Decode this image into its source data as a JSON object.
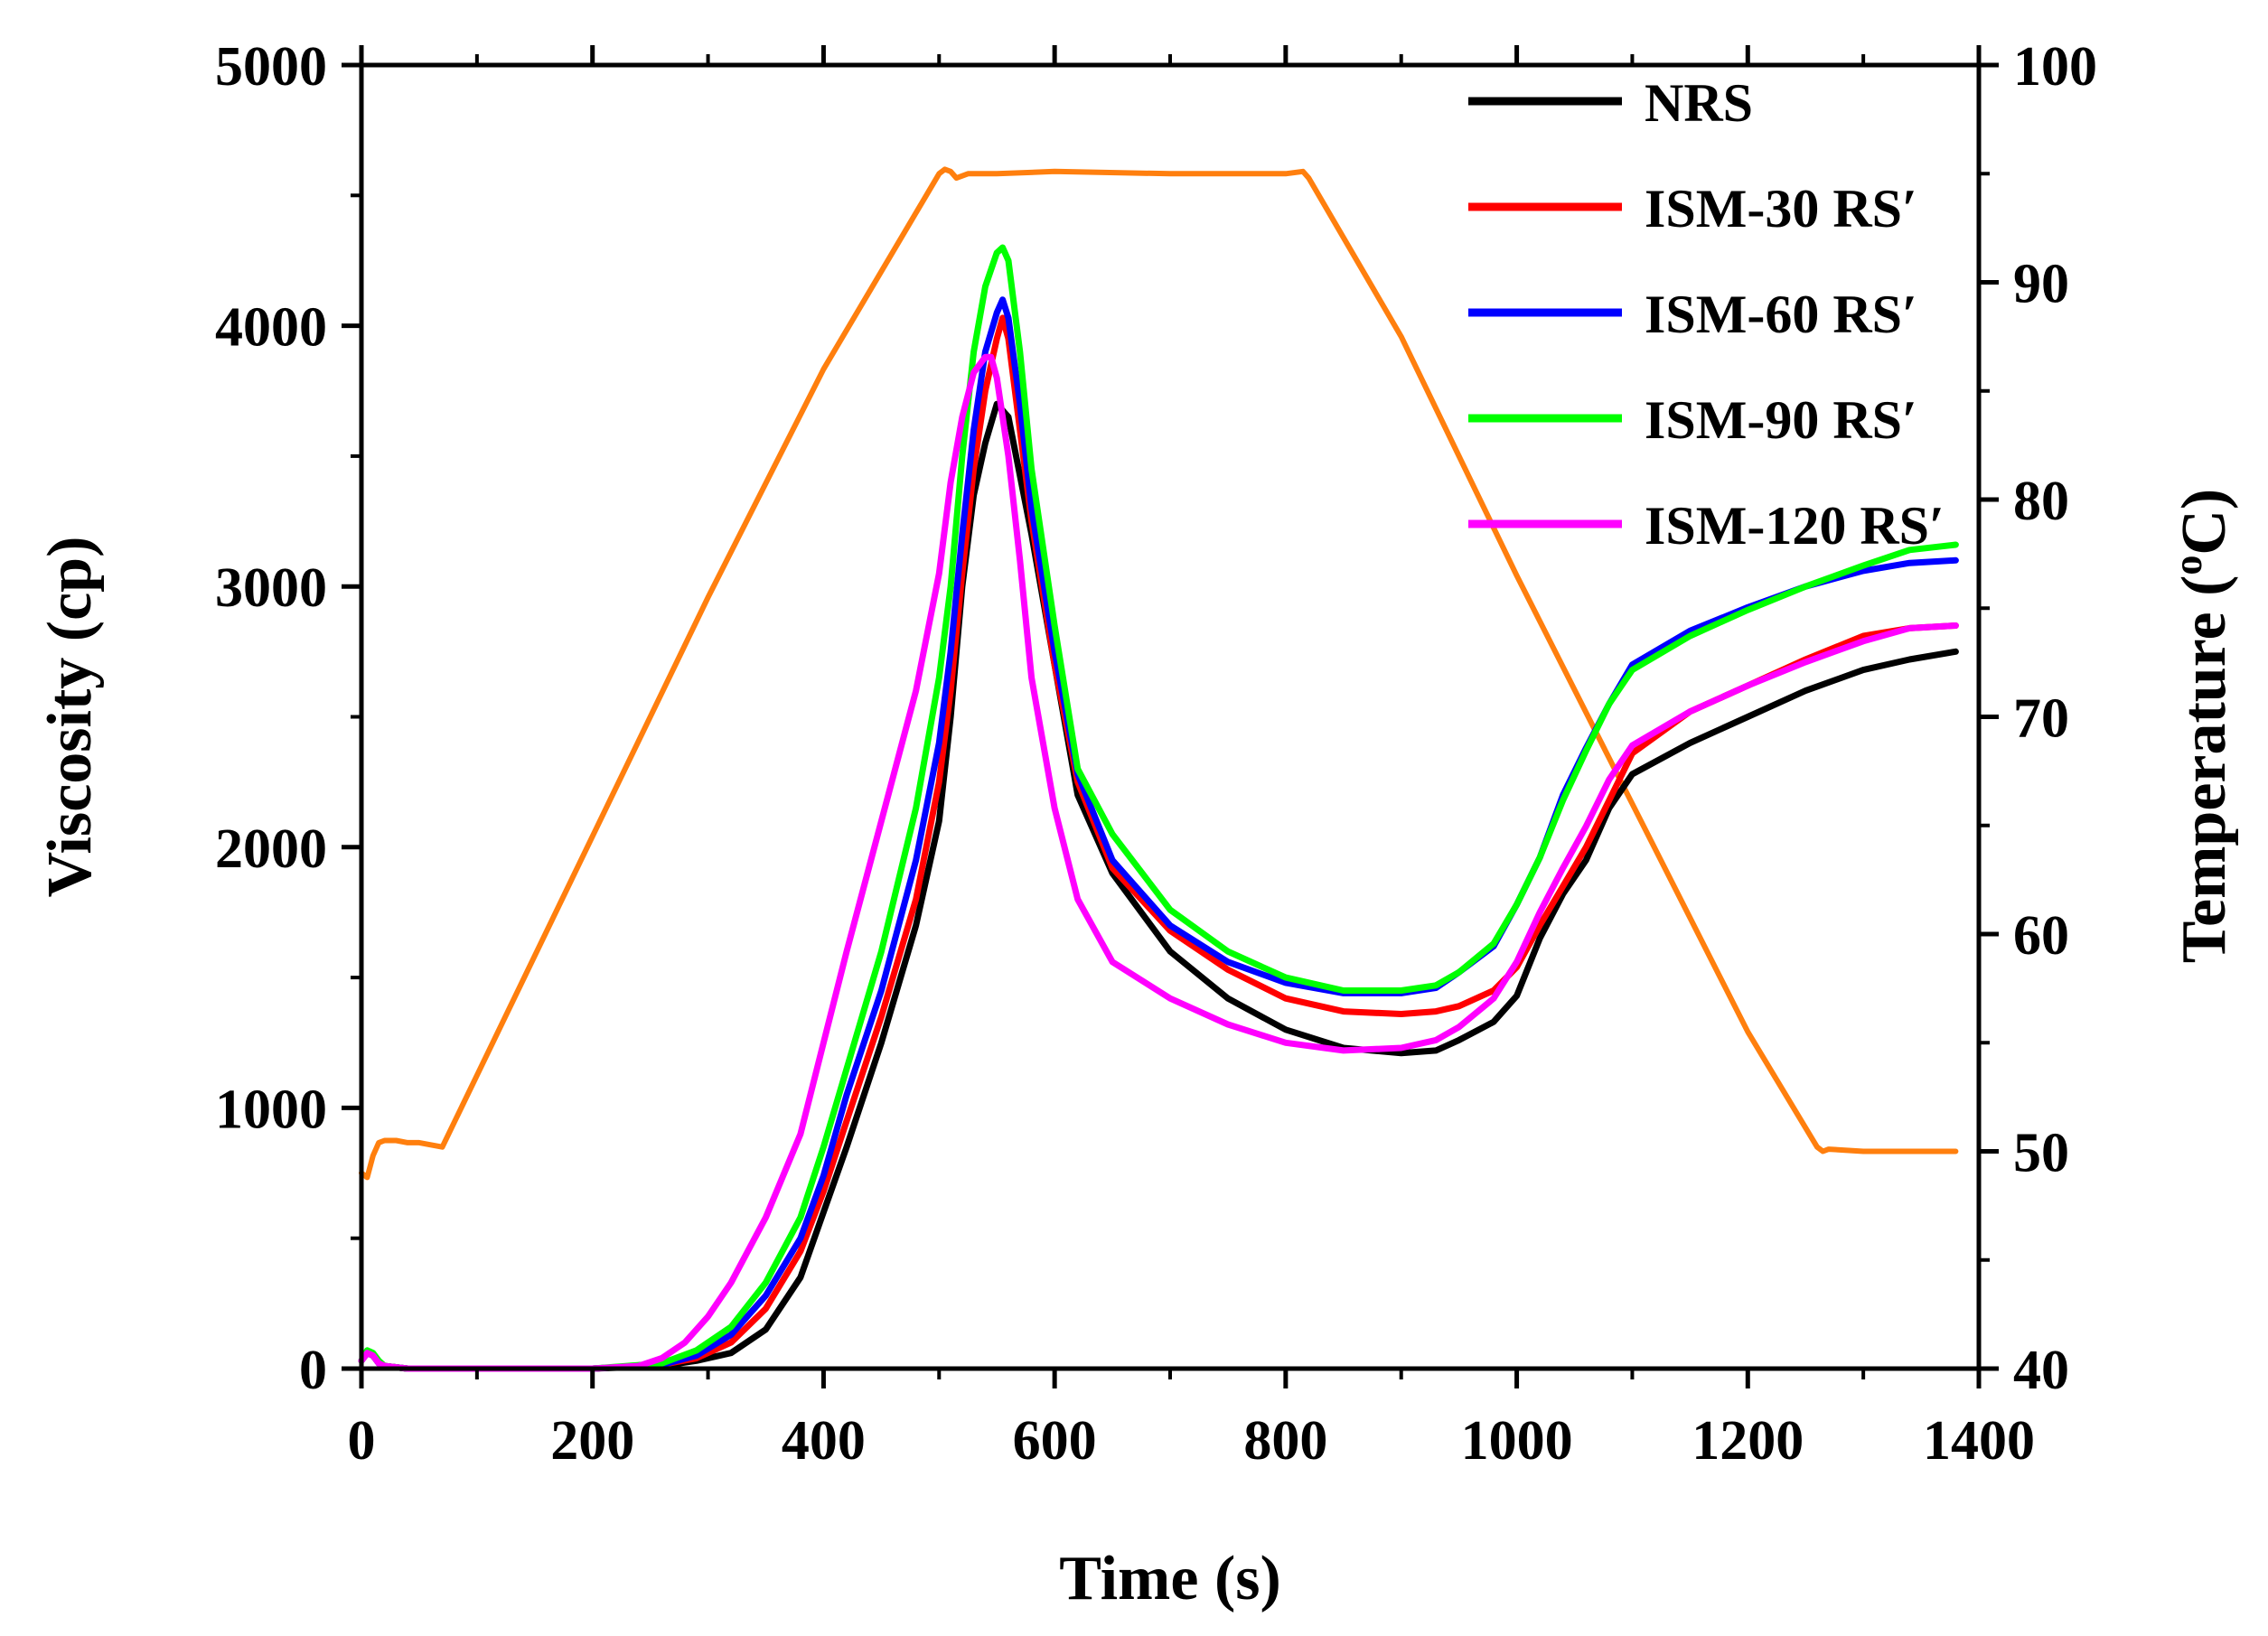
{
  "chart_data": {
    "type": "line",
    "xlabel": "Time (s)",
    "ylabel": "Viscosity (cp)",
    "y2label_main": "Temperature (",
    "y2label_sup": "o",
    "y2label_end": "C)",
    "xlim": [
      0,
      1400
    ],
    "ylim": [
      0,
      5000
    ],
    "y2lim": [
      40,
      100
    ],
    "xticks": [
      "0",
      "200",
      "400",
      "600",
      "800",
      "1000",
      "1200",
      "1400"
    ],
    "yticks": [
      "0",
      "1000",
      "2000",
      "3000",
      "4000",
      "5000"
    ],
    "y2ticks": [
      "40",
      "50",
      "60",
      "70",
      "80",
      "90",
      "100"
    ],
    "legend_position": "top-right",
    "series": [
      {
        "name": "NRS",
        "color": "#000000",
        "x": [
          0,
          5,
          10,
          15,
          20,
          40,
          100,
          200,
          260,
          290,
          320,
          350,
          380,
          400,
          420,
          450,
          480,
          500,
          510,
          520,
          530,
          540,
          550,
          560,
          580,
          600,
          620,
          650,
          700,
          750,
          800,
          850,
          900,
          930,
          950,
          980,
          1000,
          1020,
          1040,
          1060,
          1080,
          1100,
          1150,
          1200,
          1250,
          1300,
          1340,
          1380
        ],
        "y": [
          30,
          60,
          50,
          20,
          10,
          0,
          0,
          0,
          10,
          30,
          60,
          150,
          350,
          600,
          850,
          1250,
          1700,
          2100,
          2500,
          3000,
          3350,
          3550,
          3700,
          3650,
          3200,
          2700,
          2200,
          1900,
          1600,
          1420,
          1300,
          1230,
          1210,
          1220,
          1260,
          1330,
          1430,
          1650,
          1820,
          1950,
          2150,
          2280,
          2400,
          2500,
          2600,
          2680,
          2720,
          2750
        ]
      },
      {
        "name": "ISM-30 RS′",
        "color": "#ff0000",
        "x": [
          0,
          5,
          10,
          15,
          20,
          40,
          100,
          200,
          260,
          290,
          320,
          350,
          380,
          400,
          420,
          450,
          480,
          500,
          510,
          520,
          530,
          540,
          550,
          555,
          560,
          570,
          580,
          600,
          620,
          650,
          700,
          750,
          800,
          850,
          900,
          930,
          950,
          980,
          1000,
          1020,
          1040,
          1060,
          1080,
          1100,
          1150,
          1200,
          1250,
          1300,
          1340,
          1380
        ],
        "y": [
          30,
          60,
          50,
          20,
          10,
          0,
          0,
          0,
          15,
          40,
          100,
          230,
          450,
          680,
          950,
          1350,
          1800,
          2250,
          2600,
          3050,
          3450,
          3750,
          3950,
          4030,
          3950,
          3600,
          3250,
          2700,
          2250,
          1920,
          1680,
          1530,
          1420,
          1370,
          1360,
          1370,
          1390,
          1450,
          1540,
          1700,
          1850,
          2000,
          2180,
          2360,
          2520,
          2620,
          2720,
          2810,
          2840,
          2850
        ]
      },
      {
        "name": "ISM-60 RS′",
        "color": "#0000ff",
        "x": [
          0,
          5,
          10,
          15,
          20,
          40,
          100,
          200,
          260,
          290,
          320,
          350,
          380,
          400,
          420,
          450,
          480,
          500,
          510,
          520,
          530,
          540,
          550,
          555,
          560,
          570,
          580,
          600,
          620,
          650,
          700,
          750,
          800,
          850,
          900,
          930,
          950,
          980,
          1000,
          1020,
          1040,
          1060,
          1080,
          1100,
          1150,
          1200,
          1250,
          1300,
          1340,
          1380
        ],
        "y": [
          30,
          60,
          50,
          20,
          10,
          0,
          0,
          0,
          15,
          50,
          130,
          280,
          500,
          740,
          1050,
          1450,
          1950,
          2400,
          2750,
          3200,
          3600,
          3900,
          4050,
          4100,
          4030,
          3700,
          3300,
          2750,
          2280,
          1950,
          1700,
          1560,
          1480,
          1440,
          1440,
          1460,
          1520,
          1620,
          1780,
          1960,
          2200,
          2380,
          2550,
          2700,
          2830,
          2920,
          3000,
          3060,
          3090,
          3100
        ]
      },
      {
        "name": "ISM-90 RS′",
        "color": "#00ff00",
        "x": [
          0,
          5,
          10,
          15,
          20,
          40,
          100,
          200,
          260,
          290,
          320,
          350,
          380,
          400,
          420,
          450,
          480,
          500,
          510,
          520,
          530,
          540,
          550,
          555,
          560,
          570,
          580,
          600,
          620,
          650,
          700,
          750,
          800,
          850,
          900,
          930,
          950,
          980,
          1000,
          1020,
          1040,
          1060,
          1080,
          1100,
          1150,
          1200,
          1250,
          1300,
          1340,
          1380
        ],
        "y": [
          30,
          70,
          60,
          30,
          10,
          0,
          0,
          0,
          20,
          70,
          160,
          330,
          580,
          850,
          1150,
          1600,
          2150,
          2650,
          3000,
          3500,
          3900,
          4150,
          4280,
          4300,
          4250,
          3900,
          3450,
          2850,
          2300,
          2050,
          1760,
          1600,
          1500,
          1450,
          1450,
          1470,
          1520,
          1630,
          1780,
          1960,
          2180,
          2370,
          2550,
          2680,
          2810,
          2910,
          3000,
          3080,
          3140,
          3160
        ]
      },
      {
        "name": "ISM-120 RS′",
        "color": "#ff00ff",
        "x": [
          0,
          5,
          10,
          15,
          20,
          40,
          100,
          200,
          240,
          260,
          280,
          300,
          320,
          350,
          380,
          400,
          420,
          450,
          480,
          500,
          510,
          520,
          530,
          540,
          545,
          550,
          560,
          570,
          580,
          600,
          620,
          650,
          700,
          750,
          800,
          850,
          900,
          930,
          950,
          980,
          1000,
          1020,
          1040,
          1060,
          1080,
          1100,
          1150,
          1200,
          1250,
          1300,
          1340,
          1380
        ],
        "y": [
          30,
          60,
          50,
          20,
          10,
          0,
          0,
          0,
          10,
          40,
          100,
          200,
          330,
          580,
          900,
          1250,
          1600,
          2100,
          2600,
          3050,
          3400,
          3650,
          3820,
          3880,
          3880,
          3800,
          3500,
          3100,
          2650,
          2150,
          1800,
          1560,
          1420,
          1320,
          1250,
          1220,
          1230,
          1260,
          1310,
          1420,
          1560,
          1750,
          1920,
          2080,
          2260,
          2390,
          2520,
          2620,
          2710,
          2790,
          2840,
          2850
        ]
      },
      {
        "name": "Temperature",
        "color": "#ff7f0e",
        "axis": "right",
        "in_legend": false,
        "x": [
          0,
          5,
          10,
          15,
          20,
          30,
          40,
          50,
          60,
          70,
          100,
          200,
          300,
          400,
          500,
          505,
          510,
          515,
          520,
          525,
          530,
          550,
          600,
          700,
          800,
          815,
          820,
          900,
          1000,
          1100,
          1200,
          1260,
          1265,
          1270,
          1300,
          1380
        ],
        "y": [
          49,
          48.8,
          49.8,
          50.4,
          50.5,
          50.5,
          50.4,
          50.4,
          50.3,
          50.2,
          53.5,
          64.5,
          75.5,
          86,
          95,
          95.2,
          95.1,
          94.8,
          94.9,
          95,
          95,
          95,
          95.1,
          95,
          95,
          95.1,
          94.8,
          87.5,
          76.5,
          66,
          55.5,
          50.2,
          50,
          50.1,
          50,
          50
        ]
      }
    ]
  }
}
